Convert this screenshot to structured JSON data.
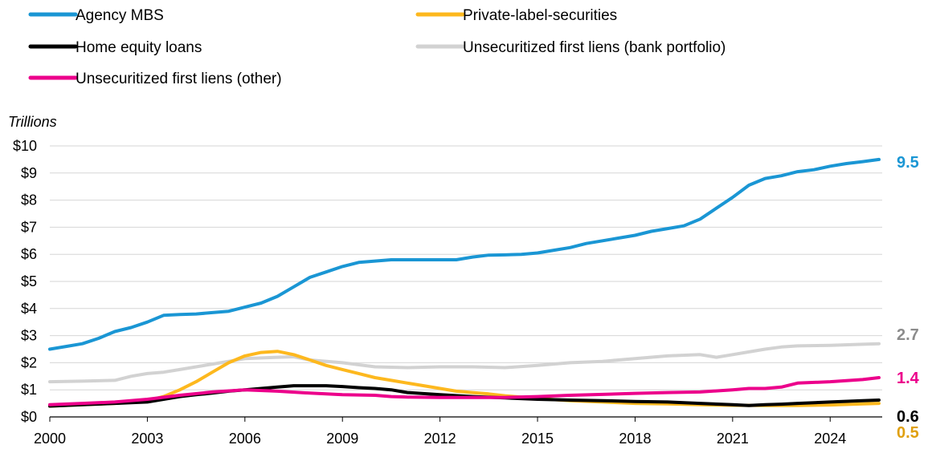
{
  "chart_data": {
    "type": "line",
    "ylabel": "Trillions",
    "xlim": [
      2000,
      2025.6
    ],
    "ylim": [
      0,
      10
    ],
    "yticks": [
      {
        "value": 0,
        "label": "$0"
      },
      {
        "value": 1,
        "label": "$1"
      },
      {
        "value": 2,
        "label": "$2"
      },
      {
        "value": 3,
        "label": "$3"
      },
      {
        "value": 4,
        "label": "$4"
      },
      {
        "value": 5,
        "label": "$5"
      },
      {
        "value": 6,
        "label": "$6"
      },
      {
        "value": 7,
        "label": "$7"
      },
      {
        "value": 8,
        "label": "$8"
      },
      {
        "value": 9,
        "label": "$9"
      },
      {
        "value": 10,
        "label": "$10"
      }
    ],
    "xticks": [
      {
        "value": 2000,
        "label": "2000"
      },
      {
        "value": 2003,
        "label": "2003"
      },
      {
        "value": 2006,
        "label": "2006"
      },
      {
        "value": 2009,
        "label": "2009"
      },
      {
        "value": 2012,
        "label": "2012"
      },
      {
        "value": 2015,
        "label": "2015"
      },
      {
        "value": 2018,
        "label": "2018"
      },
      {
        "value": 2021,
        "label": "2021"
      },
      {
        "value": 2024,
        "label": "2024"
      }
    ],
    "grid": "horizontal",
    "legend": "top",
    "series": [
      {
        "name": "Agency MBS",
        "color": "#1a96d4",
        "end_label": "9.5",
        "x": [
          2000,
          2000.5,
          2001,
          2001.5,
          2002,
          2002.5,
          2003,
          2003.5,
          2004,
          2004.5,
          2005,
          2005.5,
          2006,
          2006.5,
          2007,
          2007.5,
          2008,
          2008.5,
          2009,
          2009.5,
          2010,
          2010.5,
          2011,
          2011.5,
          2012,
          2012.5,
          2013,
          2013.5,
          2014,
          2014.5,
          2015,
          2015.5,
          2016,
          2016.5,
          2017,
          2017.5,
          2018,
          2018.5,
          2019,
          2019.5,
          2020,
          2020.5,
          2021,
          2021.5,
          2022,
          2022.5,
          2023,
          2023.5,
          2024,
          2024.5,
          2025,
          2025.5
        ],
        "y": [
          2.5,
          2.6,
          2.7,
          2.9,
          3.15,
          3.3,
          3.5,
          3.75,
          3.78,
          3.8,
          3.85,
          3.9,
          4.05,
          4.2,
          4.45,
          4.8,
          5.15,
          5.35,
          5.55,
          5.7,
          5.75,
          5.8,
          5.8,
          5.8,
          5.8,
          5.8,
          5.9,
          5.97,
          5.98,
          6.0,
          6.05,
          6.15,
          6.25,
          6.4,
          6.5,
          6.6,
          6.7,
          6.85,
          6.95,
          7.05,
          7.3,
          7.7,
          8.1,
          8.55,
          8.8,
          8.9,
          9.05,
          9.12,
          9.25,
          9.35,
          9.42,
          9.5
        ]
      },
      {
        "name": "Private-label-securities",
        "color": "#fdb81e",
        "end_label": "0.5",
        "x": [
          2000,
          2001,
          2002,
          2003,
          2003.5,
          2004,
          2004.5,
          2005,
          2005.5,
          2006,
          2006.5,
          2007,
          2007.5,
          2008,
          2008.5,
          2009,
          2009.5,
          2010,
          2010.5,
          2011,
          2011.5,
          2012,
          2012.5,
          2013,
          2013.5,
          2014,
          2015,
          2016,
          2017,
          2018,
          2019,
          2020,
          2021,
          2022,
          2023,
          2024,
          2025,
          2025.5
        ],
        "y": [
          0.4,
          0.45,
          0.5,
          0.6,
          0.75,
          1.0,
          1.3,
          1.65,
          2.0,
          2.25,
          2.38,
          2.42,
          2.3,
          2.1,
          1.9,
          1.75,
          1.6,
          1.45,
          1.35,
          1.25,
          1.15,
          1.05,
          0.95,
          0.9,
          0.85,
          0.78,
          0.68,
          0.6,
          0.55,
          0.5,
          0.48,
          0.45,
          0.43,
          0.42,
          0.42,
          0.44,
          0.48,
          0.5
        ]
      },
      {
        "name": "Home equity loans",
        "color": "#000000",
        "end_label": "0.6",
        "x": [
          2000,
          2001,
          2002,
          2003,
          2003.5,
          2004,
          2004.5,
          2005,
          2005.5,
          2006,
          2006.5,
          2007,
          2007.5,
          2008,
          2008.5,
          2009,
          2009.5,
          2010,
          2010.5,
          2011,
          2012,
          2013,
          2014,
          2015,
          2016,
          2017,
          2018,
          2019,
          2020,
          2021,
          2021.5,
          2022,
          2022.5,
          2023,
          2024,
          2025,
          2025.5
        ],
        "y": [
          0.4,
          0.45,
          0.5,
          0.55,
          0.65,
          0.75,
          0.82,
          0.88,
          0.95,
          1.0,
          1.05,
          1.1,
          1.15,
          1.15,
          1.15,
          1.12,
          1.08,
          1.05,
          1.0,
          0.9,
          0.82,
          0.75,
          0.7,
          0.65,
          0.62,
          0.6,
          0.57,
          0.55,
          0.5,
          0.45,
          0.42,
          0.45,
          0.47,
          0.5,
          0.55,
          0.6,
          0.62
        ]
      },
      {
        "name": "Unsecuritized first liens (bank portfolio)",
        "color": "#d2d2d2",
        "end_label": "2.7",
        "x": [
          2000,
          2001,
          2002,
          2002.5,
          2003,
          2003.5,
          2004,
          2005,
          2006,
          2007,
          2007.5,
          2008,
          2009,
          2010,
          2011,
          2012,
          2013,
          2014,
          2015,
          2016,
          2017,
          2018,
          2019,
          2020,
          2020.5,
          2021,
          2021.5,
          2022,
          2022.5,
          2023,
          2024,
          2025,
          2025.5
        ],
        "y": [
          1.3,
          1.32,
          1.35,
          1.5,
          1.6,
          1.65,
          1.75,
          1.95,
          2.15,
          2.2,
          2.22,
          2.1,
          2.0,
          1.85,
          1.82,
          1.85,
          1.85,
          1.82,
          1.9,
          2.0,
          2.05,
          2.15,
          2.25,
          2.3,
          2.2,
          2.3,
          2.4,
          2.5,
          2.58,
          2.62,
          2.64,
          2.68,
          2.7
        ]
      },
      {
        "name": "Unsecuritized first liens (other)",
        "color": "#ec008b",
        "end_label": "1.4",
        "x": [
          2000,
          2001,
          2002,
          2003,
          2004,
          2005,
          2006,
          2007,
          2008,
          2009,
          2010,
          2010.5,
          2011,
          2012,
          2013,
          2014,
          2015,
          2016,
          2017,
          2018,
          2019,
          2020,
          2021,
          2021.5,
          2022,
          2022.5,
          2023,
          2024,
          2025,
          2025.5
        ],
        "y": [
          0.45,
          0.5,
          0.55,
          0.65,
          0.8,
          0.92,
          1.0,
          0.95,
          0.88,
          0.82,
          0.8,
          0.75,
          0.73,
          0.72,
          0.72,
          0.72,
          0.75,
          0.8,
          0.83,
          0.87,
          0.9,
          0.92,
          1.0,
          1.05,
          1.05,
          1.1,
          1.25,
          1.3,
          1.38,
          1.45
        ]
      }
    ]
  }
}
